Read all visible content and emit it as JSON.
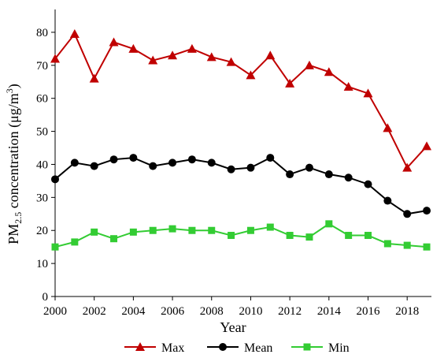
{
  "chart_data": {
    "type": "line",
    "xlabel": "Year",
    "ylabel": {
      "prefix": "PM",
      "sub": "2.5",
      "middle": " concentration (μg/m",
      "sup": "3",
      "suffix": ")"
    },
    "x": [
      2000,
      2001,
      2002,
      2003,
      2004,
      2005,
      2006,
      2007,
      2008,
      2009,
      2010,
      2011,
      2012,
      2013,
      2014,
      2015,
      2016,
      2017,
      2018,
      2019
    ],
    "xticks": [
      "2000",
      "2002",
      "2004",
      "2006",
      "2008",
      "2010",
      "2012",
      "2014",
      "2016",
      "2018"
    ],
    "yticks": [
      "0",
      "10",
      "20",
      "30",
      "40",
      "50",
      "60",
      "70",
      "80"
    ],
    "xlim": [
      2000,
      2019.2
    ],
    "ylim": [
      0,
      85
    ],
    "grid": false,
    "legend_position": "bottom",
    "series": [
      {
        "name": "Max",
        "marker": "triangle",
        "color": "#c00000",
        "values": [
          72,
          79.5,
          66,
          77,
          75,
          71.5,
          73,
          75,
          72.5,
          71,
          67,
          73,
          64.5,
          70,
          68,
          63.5,
          61.5,
          51,
          39,
          45.5
        ]
      },
      {
        "name": "Mean",
        "marker": "circle",
        "color": "#000000",
        "values": [
          35.5,
          40.5,
          39.5,
          41.5,
          42,
          39.5,
          40.5,
          41.5,
          40.5,
          38.5,
          39,
          42,
          37,
          39,
          37,
          36,
          34,
          29,
          25,
          26
        ]
      },
      {
        "name": "Min",
        "marker": "square",
        "color": "#33cc33",
        "values": [
          15,
          16.5,
          19.5,
          17.5,
          19.5,
          20,
          20.5,
          20,
          20,
          18.5,
          20,
          21,
          18.5,
          18,
          22,
          18.5,
          18.5,
          16,
          15.5,
          15
        ]
      }
    ]
  }
}
